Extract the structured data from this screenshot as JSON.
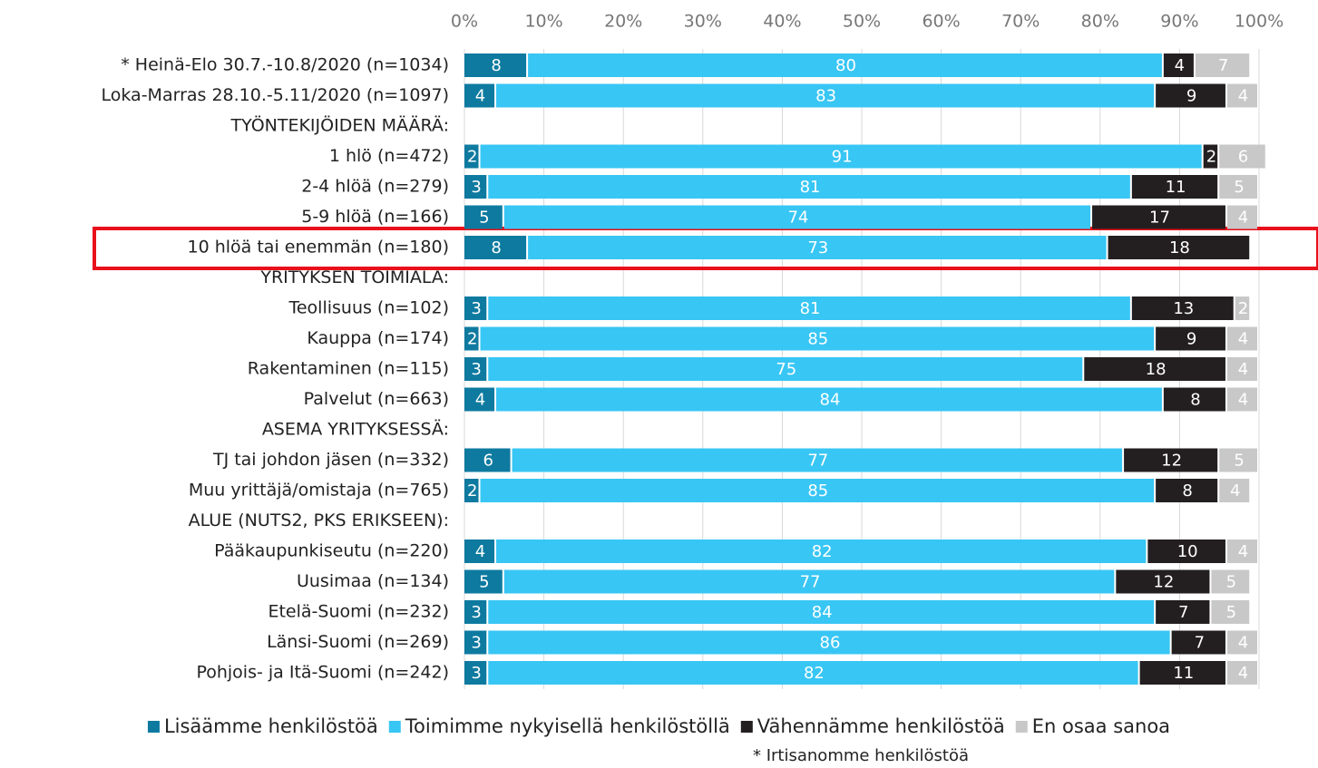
{
  "chart_data": {
    "type": "stacked_bar_horizontal",
    "categories": [
      "* Heinä-Elo 30.7.-10.8/2020 (n=1034)",
      "Loka-Marras 28.10.-5.11/2020 (n=1097)",
      "TYÖNTEKIJÖIDEN MÄÄRÄ:",
      "1 hlö (n=472)",
      "2-4 hlöä (n=279)",
      "5-9 hlöä (n=166)",
      "10 hlöä tai enemmän (n=180)",
      "YRITYKSEN TOIMIALA:",
      "Teollisuus (n=102)",
      "Kauppa (n=174)",
      "Rakentaminen (n=115)",
      "Palvelut (n=663)",
      "ASEMA YRITYKSESSÄ:",
      "TJ tai johdon jäsen (n=332)",
      "Muu yrittäjä/omistaja (n=765)",
      "ALUE (NUTS2, PKS ERIKSEEN):",
      "Pääkaupunkiseutu (n=220)",
      "Uusimaa (n=134)",
      "Etelä-Suomi (n=232)",
      "Länsi-Suomi (n=269)",
      "Pohjois- ja Itä-Suomi (n=242)"
    ],
    "series": [
      {
        "name": "Lisäämme henkilöstöä",
        "color": "#0e7aa0",
        "values": [
          8,
          4,
          null,
          2,
          3,
          5,
          8,
          null,
          3,
          2,
          3,
          4,
          null,
          6,
          2,
          null,
          4,
          5,
          3,
          3,
          3
        ]
      },
      {
        "name": "Toimimme nykyisellä henkilöstöllä",
        "color": "#38c6f4",
        "values": [
          80,
          83,
          null,
          91,
          81,
          74,
          73,
          null,
          81,
          85,
          75,
          84,
          null,
          77,
          85,
          null,
          82,
          77,
          84,
          86,
          82
        ]
      },
      {
        "name": "Vähennämme henkilöstöä",
        "color": "#231f20",
        "values": [
          4,
          9,
          null,
          2,
          11,
          17,
          18,
          null,
          13,
          9,
          18,
          8,
          null,
          12,
          8,
          null,
          10,
          12,
          7,
          7,
          11
        ]
      },
      {
        "name": "En osaa sanoa",
        "color": "#c8c8c8",
        "values": [
          7,
          4,
          null,
          6,
          5,
          4,
          null,
          null,
          2,
          4,
          4,
          4,
          null,
          5,
          4,
          null,
          4,
          5,
          5,
          4,
          4
        ]
      }
    ],
    "xlim": [
      0,
      100
    ],
    "xticks": [
      {
        "value": 0,
        "label": "0%"
      },
      {
        "value": 10,
        "label": "10%"
      },
      {
        "value": 20,
        "label": "20%"
      },
      {
        "value": 30,
        "label": "30%"
      },
      {
        "value": 40,
        "label": "40%"
      },
      {
        "value": 50,
        "label": "50%"
      },
      {
        "value": 60,
        "label": "60%"
      },
      {
        "value": 70,
        "label": "70%"
      },
      {
        "value": 80,
        "label": "80%"
      },
      {
        "value": 90,
        "label": "90%"
      },
      {
        "value": 100,
        "label": "100%"
      }
    ],
    "grid": true,
    "legend": "bottom",
    "annotation": "* Irtisanomme  henkilöstöä"
  }
}
